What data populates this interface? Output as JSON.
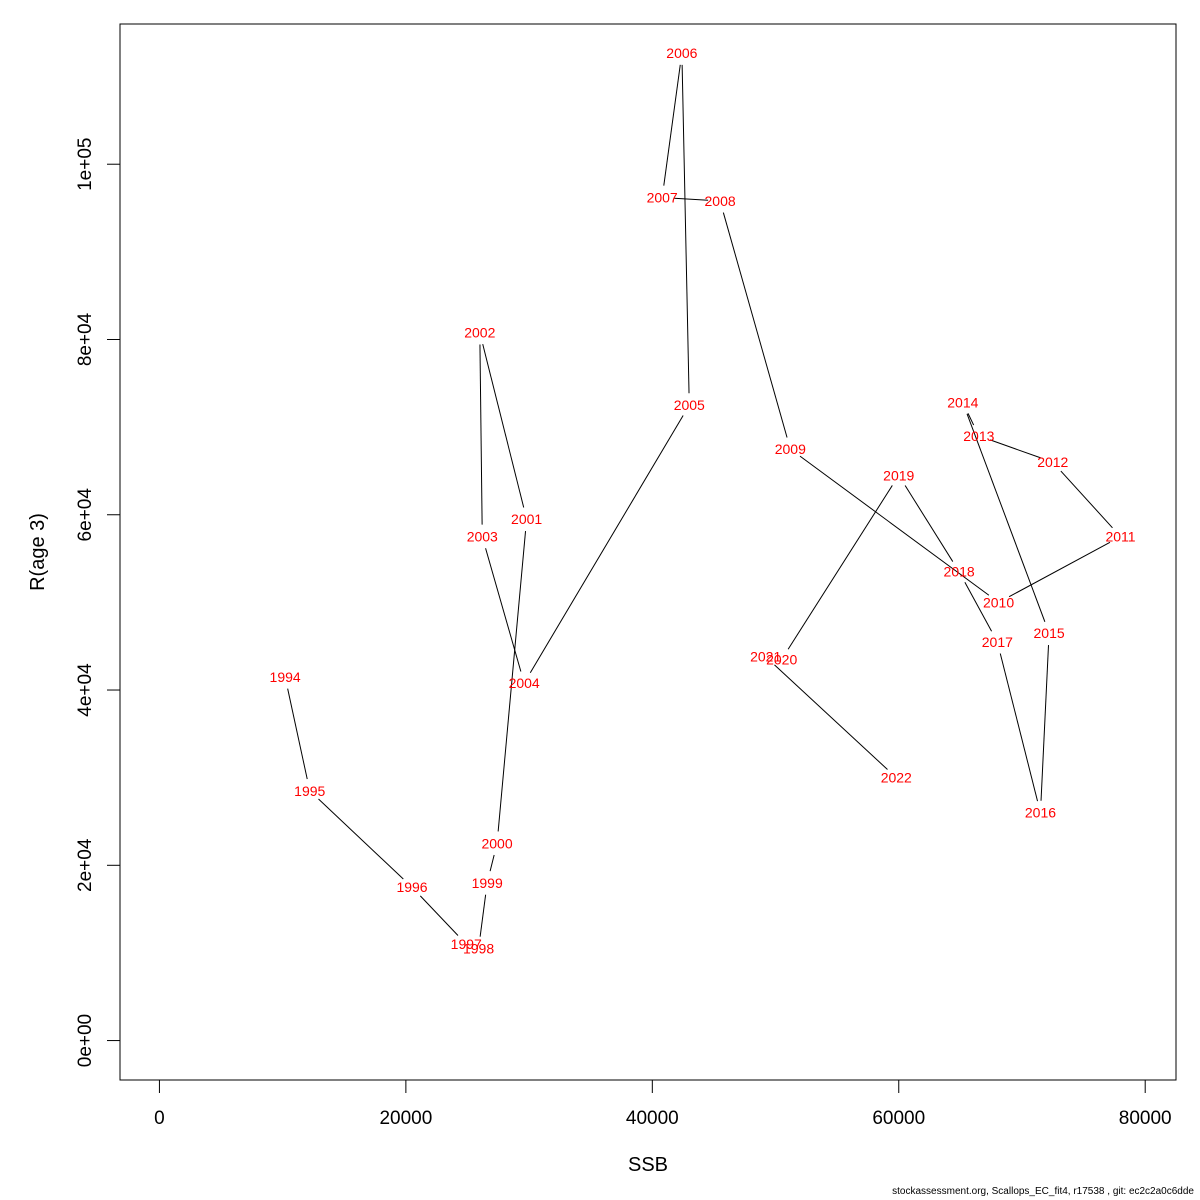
{
  "chart_data": {
    "type": "line",
    "title": "",
    "xlabel": "SSB",
    "ylabel": "R(age 3)",
    "xlim": [
      -3200,
      82500
    ],
    "ylim": [
      -4500,
      116000
    ],
    "x_ticks": [
      0,
      20000,
      40000,
      60000,
      80000
    ],
    "x_tick_labels": [
      "0",
      "20000",
      "40000",
      "60000",
      "80000"
    ],
    "y_ticks": [
      0,
      20000,
      40000,
      60000,
      80000,
      100000
    ],
    "y_tick_labels": [
      "0e+00",
      "2e+04",
      "4e+04",
      "6e+04",
      "8e+04",
      "1e+05"
    ],
    "grid": false,
    "line_color": "#000000",
    "label_color": "#ff0000",
    "points": [
      {
        "label": "1994",
        "x": 10200,
        "y": 41500
      },
      {
        "label": "1995",
        "x": 12200,
        "y": 28500
      },
      {
        "label": "1996",
        "x": 20500,
        "y": 17500
      },
      {
        "label": "1997",
        "x": 24900,
        "y": 11000
      },
      {
        "label": "1998",
        "x": 25900,
        "y": 10500
      },
      {
        "label": "1999",
        "x": 26600,
        "y": 18000
      },
      {
        "label": "2000",
        "x": 27400,
        "y": 22500
      },
      {
        "label": "2001",
        "x": 29800,
        "y": 59500
      },
      {
        "label": "2002",
        "x": 26000,
        "y": 80800
      },
      {
        "label": "2003",
        "x": 26200,
        "y": 57500
      },
      {
        "label": "2004",
        "x": 29600,
        "y": 40800
      },
      {
        "label": "2005",
        "x": 43000,
        "y": 72500
      },
      {
        "label": "2006",
        "x": 42400,
        "y": 112700
      },
      {
        "label": "2007",
        "x": 40800,
        "y": 96200
      },
      {
        "label": "2008",
        "x": 45500,
        "y": 95800
      },
      {
        "label": "2009",
        "x": 51200,
        "y": 67500
      },
      {
        "label": "2010",
        "x": 68100,
        "y": 50000
      },
      {
        "label": "2011",
        "x": 78000,
        "y": 57500
      },
      {
        "label": "2012",
        "x": 72500,
        "y": 66000
      },
      {
        "label": "2013",
        "x": 66500,
        "y": 69000
      },
      {
        "label": "2014",
        "x": 65200,
        "y": 72800
      },
      {
        "label": "2015",
        "x": 72200,
        "y": 46500
      },
      {
        "label": "2016",
        "x": 71500,
        "y": 26000
      },
      {
        "label": "2017",
        "x": 68000,
        "y": 45500
      },
      {
        "label": "2018",
        "x": 64900,
        "y": 53500
      },
      {
        "label": "2019",
        "x": 60000,
        "y": 64500
      },
      {
        "label": "2020",
        "x": 50500,
        "y": 43500
      },
      {
        "label": "2021",
        "x": 49200,
        "y": 43800
      },
      {
        "label": "2022",
        "x": 59800,
        "y": 30000
      }
    ]
  },
  "footer": "stockassessment.org, Scallops_EC_fit4, r17538 , git: ec2c2a0c6dde"
}
